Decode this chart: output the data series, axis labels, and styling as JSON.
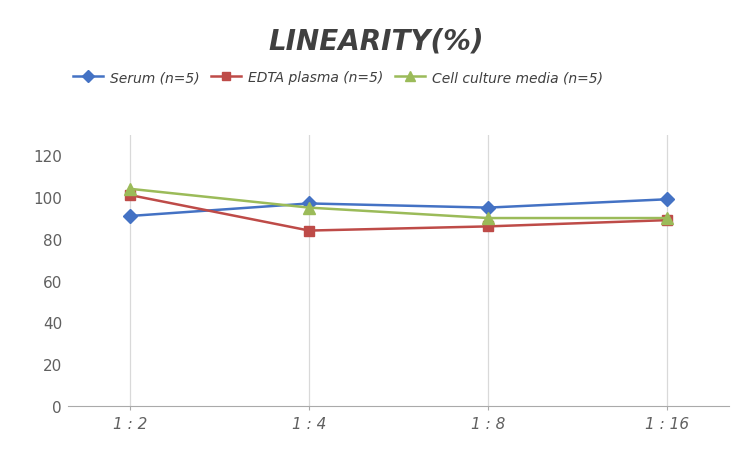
{
  "title": "LINEARITY(%)",
  "x_labels": [
    "1 : 2",
    "1 : 4",
    "1 : 8",
    "1 : 16"
  ],
  "x_positions": [
    0,
    1,
    2,
    3
  ],
  "series": [
    {
      "label": "Serum (n=5)",
      "values": [
        91,
        97,
        95,
        99
      ],
      "color": "#4472C4",
      "marker": "D",
      "marker_size": 7,
      "linewidth": 1.8
    },
    {
      "label": "EDTA plasma (n=5)",
      "values": [
        101,
        84,
        86,
        89
      ],
      "color": "#BE4B48",
      "marker": "s",
      "marker_size": 7,
      "linewidth": 1.8
    },
    {
      "label": "Cell culture media (n=5)",
      "values": [
        104,
        95,
        90,
        90
      ],
      "color": "#9BBB59",
      "marker": "^",
      "marker_size": 8,
      "linewidth": 1.8
    }
  ],
  "ylim": [
    0,
    130
  ],
  "yticks": [
    0,
    20,
    40,
    60,
    80,
    100,
    120
  ],
  "background_color": "#FFFFFF",
  "grid_color": "#D9D9D9",
  "title_fontsize": 20,
  "title_color": "#404040",
  "legend_fontsize": 10,
  "tick_fontsize": 11,
  "tick_color": "#606060"
}
